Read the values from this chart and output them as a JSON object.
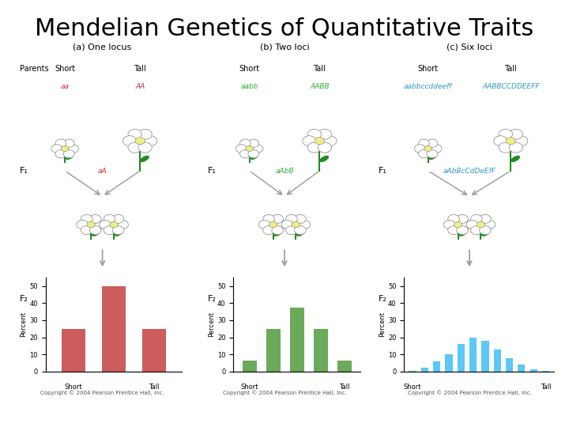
{
  "title": "Mendelian Genetics of Quantitative Traits",
  "title_fontsize": 22,
  "title_color": "#000000",
  "bg_color": "#ffffff",
  "panels": [
    {
      "label": "(a) One locus",
      "parents_label": "Parents",
      "f1_label": "F₁",
      "f2_label": "F₂",
      "short_label": "Short",
      "tall_label": "Tall",
      "short_genotype": "aa",
      "tall_genotype": "AA",
      "f1_genotype": "aA",
      "bar_values": [
        25,
        50,
        25
      ],
      "bar_positions": [
        0,
        1,
        2
      ],
      "bar_color": "#cd5c5c",
      "bar_labels": [
        "Short",
        "",
        "Tall"
      ],
      "yticks": [
        0,
        10,
        20,
        30,
        40,
        50
      ],
      "ylim": [
        0,
        55
      ]
    },
    {
      "label": "(b) Two loci",
      "parents_label": "Parents",
      "f1_label": "F₁",
      "f2_label": "F₂",
      "short_label": "Short",
      "tall_label": "Tall",
      "short_genotype": "aabb",
      "tall_genotype": "AABB",
      "f1_genotype": "aAbB",
      "bar_values": [
        6.25,
        25,
        37.5,
        25,
        6.25
      ],
      "bar_positions": [
        0,
        1,
        2,
        3,
        4
      ],
      "bar_color": "#6aaa5a",
      "bar_labels": [
        "Short",
        "",
        "",
        "",
        "Tall"
      ],
      "yticks": [
        0,
        10,
        20,
        30,
        40,
        50
      ],
      "ylim": [
        0,
        55
      ]
    },
    {
      "label": "(c) Six loci",
      "parents_label": "Parents",
      "f1_label": "F₁",
      "f2_label": "F₂",
      "short_label": "Short",
      "tall_label": "Tall",
      "short_genotype": "aabbccddeeff",
      "tall_genotype": "AABBCCDDEEFF",
      "f1_genotype": "aAbBcCdDeEfF",
      "bar_values": [
        0.5,
        2,
        6,
        10,
        16,
        20,
        18,
        13,
        8,
        4,
        1.5,
        0.5
      ],
      "bar_positions": [
        0,
        1,
        2,
        3,
        4,
        5,
        6,
        7,
        8,
        9,
        10,
        11
      ],
      "bar_color": "#5bc8f5",
      "bar_labels": [
        "Short",
        "",
        "",
        "",
        "",
        "",
        "",
        "",
        "",
        "",
        "",
        "Tall"
      ],
      "yticks": [
        0,
        10,
        20,
        30,
        40,
        50
      ],
      "ylim": [
        0,
        55
      ]
    }
  ],
  "copyright": "Copyright © 2004 Pearson Prentice Hall, Inc.",
  "red_color": "#cc3333",
  "green_color": "#33aa33",
  "arrow_color": "#999999"
}
